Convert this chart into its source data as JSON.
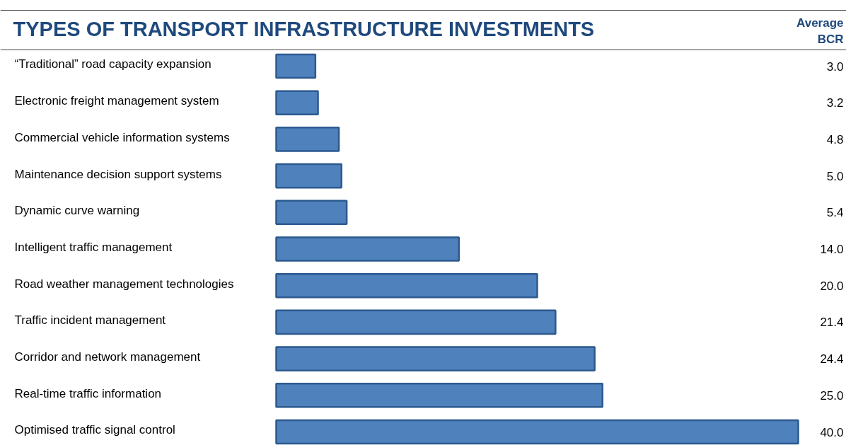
{
  "chart_data": {
    "type": "bar",
    "orientation": "horizontal",
    "title": "TYPES OF TRANSPORT INFRASTRUCTURE INVESTMENTS",
    "annotations": [
      "Average BCR"
    ],
    "categories": [
      "“Traditional” road capacity expansion",
      "Electronic freight management system",
      "Commercial vehicle information systems",
      "Maintenance decision support systems",
      "Dynamic curve warning",
      "Intelligent traffic management",
      "Road weather management technologies",
      "Traffic incident management",
      "Corridor and network management",
      "Real-time traffic information",
      "Optimised traffic signal control"
    ],
    "values": [
      3.0,
      3.2,
      4.8,
      5.0,
      5.4,
      14.0,
      20.0,
      21.4,
      24.4,
      25.0,
      40.0
    ],
    "value_labels": [
      "3.0",
      "3.2",
      "4.8",
      "5.0",
      "5.4",
      "14.0",
      "20.0",
      "21.4",
      "24.4",
      "25.0",
      "40.0"
    ],
    "color": "#4f81bd",
    "grid": false
  }
}
